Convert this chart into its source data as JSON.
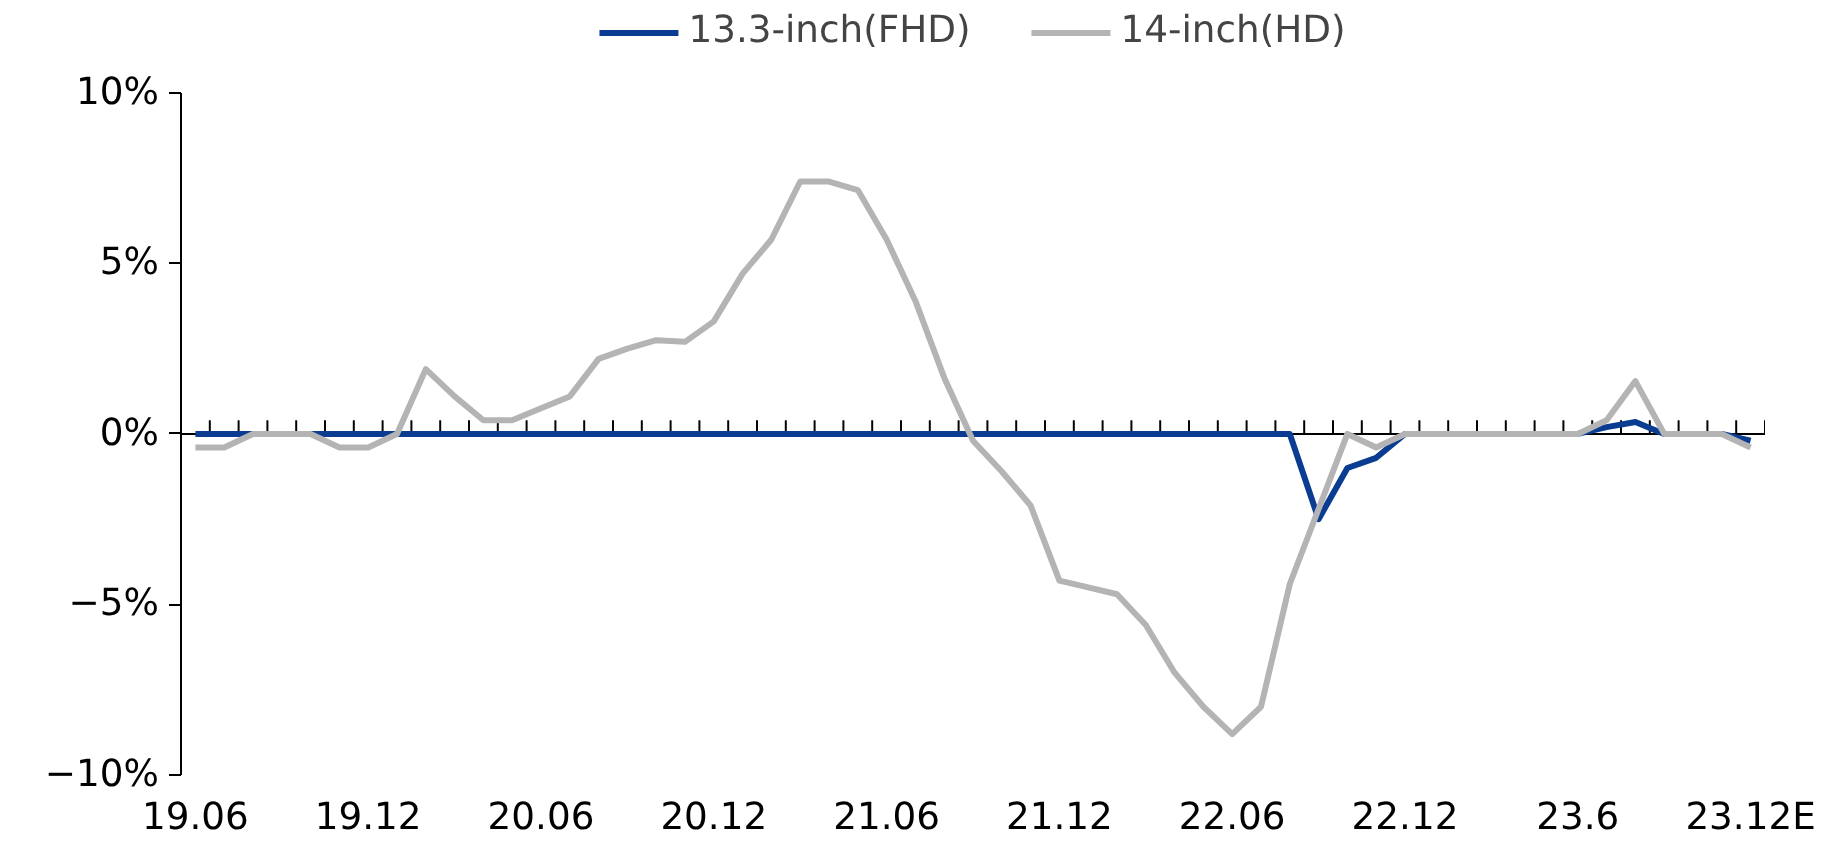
{
  "chart_data": {
    "type": "line",
    "categories": [
      "19.06",
      null,
      null,
      null,
      null,
      null,
      "19.12",
      null,
      null,
      null,
      null,
      null,
      "20.06",
      null,
      null,
      null,
      null,
      null,
      "20.12",
      null,
      null,
      null,
      null,
      null,
      "21.06",
      null,
      null,
      null,
      null,
      null,
      "21.12",
      null,
      null,
      null,
      null,
      null,
      "22.06",
      null,
      null,
      null,
      null,
      null,
      "22.12",
      null,
      null,
      null,
      null,
      null,
      "23.6",
      null,
      null,
      null,
      null,
      null,
      "23.12E"
    ],
    "series": [
      {
        "name": "13.3-inch(FHD)",
        "color": "#0a3d91",
        "values": [
          0,
          0,
          0,
          0,
          0,
          0,
          0,
          0,
          0,
          0,
          0,
          0,
          0,
          0,
          0,
          0,
          0,
          0,
          0,
          0,
          0,
          0,
          0,
          0,
          0,
          0,
          0,
          0,
          0,
          0,
          0,
          0,
          0,
          0,
          0,
          0,
          0,
          0,
          0,
          -2.5,
          -1.0,
          -0.7,
          0,
          0,
          0,
          0,
          0,
          0,
          0,
          0.2,
          0.35,
          0,
          0,
          0,
          -0.2
        ]
      },
      {
        "name": "14-inch(HD)",
        "color": "#b4b4b4",
        "values": [
          -0.4,
          -0.4,
          0,
          0,
          0,
          -0.4,
          -0.4,
          0,
          1.9,
          1.1,
          0.4,
          0.4,
          0.75,
          1.1,
          2.2,
          2.5,
          2.75,
          2.7,
          3.3,
          4.7,
          5.7,
          7.4,
          7.4,
          7.15,
          5.7,
          3.9,
          1.65,
          -0.2,
          -1.1,
          -2.1,
          -4.3,
          -4.5,
          -4.7,
          -5.6,
          -7.0,
          -8.0,
          -8.8,
          -8.0,
          -4.4,
          -2.2,
          0,
          -0.4,
          0,
          0,
          0,
          0,
          0,
          0,
          0,
          0.4,
          1.55,
          0,
          0,
          0,
          -0.4
        ]
      }
    ],
    "ylim": [
      -10,
      10
    ],
    "yticks": [
      {
        "value": -10,
        "label": "−10%"
      },
      {
        "value": -5,
        "label": "−5%"
      },
      {
        "value": 0,
        "label": "0%"
      },
      {
        "value": 5,
        "label": "5%"
      },
      {
        "value": 10,
        "label": "10%"
      }
    ],
    "legend": "top",
    "marker": "none",
    "line_style": "solid"
  }
}
